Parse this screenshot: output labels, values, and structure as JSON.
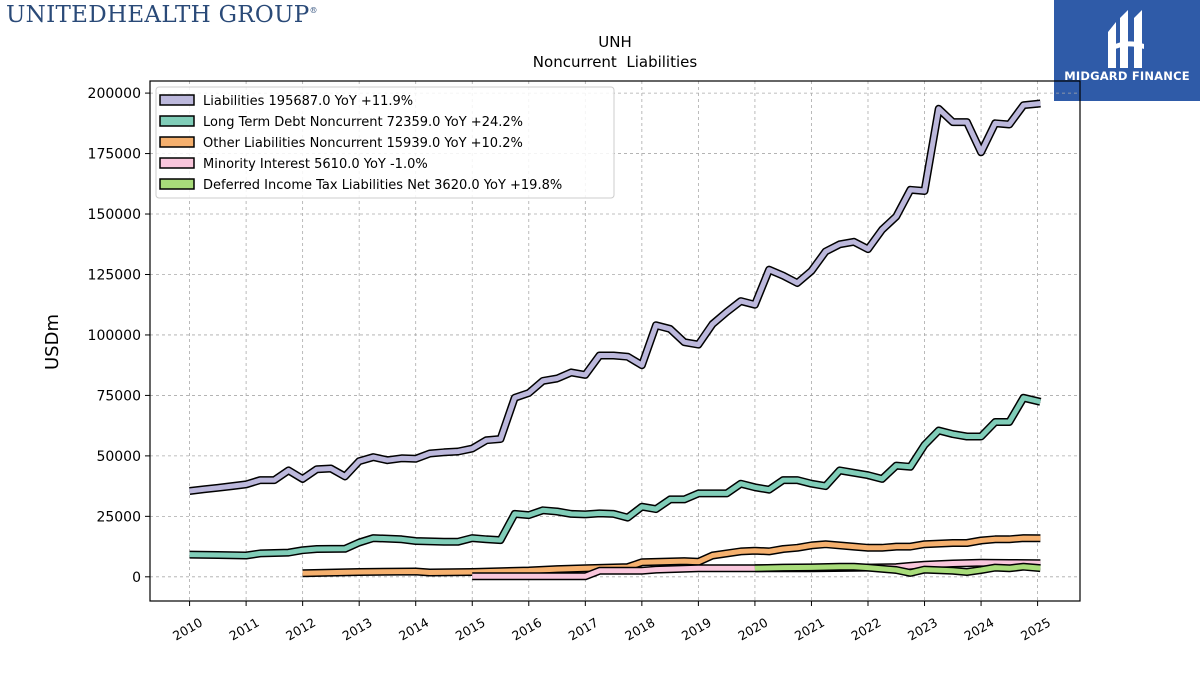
{
  "header": {
    "company_logo_text": "UNITEDHEALTH GROUP",
    "company_logo_mark": "®",
    "brand_name": "MIDGARD FINANCE"
  },
  "chart_data": {
    "type": "line",
    "title": "UNH",
    "subtitle": "Noncurrent  Liabilities",
    "xlabel": "",
    "ylabel": "USDm",
    "xlim": [
      2009.3,
      2025.75
    ],
    "ylim": [
      -10000,
      205000
    ],
    "x_ticks": [
      "2010",
      "2011",
      "2012",
      "2013",
      "2014",
      "2015",
      "2016",
      "2017",
      "2018",
      "2019",
      "2020",
      "2021",
      "2022",
      "2023",
      "2024",
      "2025"
    ],
    "y_ticks": [
      "0",
      "25000",
      "50000",
      "75000",
      "100000",
      "125000",
      "150000",
      "175000",
      "200000"
    ],
    "grid": true,
    "legend_position": "top-left",
    "series": [
      {
        "name": "Liabilities",
        "legend": "Liabilities  195687.0 YoY +11.9%",
        "color": "#bcb8dc",
        "points": [
          [
            2010.0,
            35500
          ],
          [
            2010.25,
            36200
          ],
          [
            2010.5,
            36800
          ],
          [
            2010.75,
            37500
          ],
          [
            2011.0,
            38200
          ],
          [
            2011.25,
            40000
          ],
          [
            2011.5,
            40000
          ],
          [
            2011.75,
            44000
          ],
          [
            2012.0,
            40500
          ],
          [
            2012.25,
            44500
          ],
          [
            2012.5,
            44800
          ],
          [
            2012.75,
            41500
          ],
          [
            2013.0,
            47800
          ],
          [
            2013.25,
            49500
          ],
          [
            2013.5,
            48200
          ],
          [
            2013.75,
            49000
          ],
          [
            2014.0,
            48800
          ],
          [
            2014.25,
            51000
          ],
          [
            2014.5,
            51500
          ],
          [
            2014.75,
            51800
          ],
          [
            2015.0,
            53000
          ],
          [
            2015.25,
            56500
          ],
          [
            2015.5,
            57000
          ],
          [
            2015.75,
            74000
          ],
          [
            2016.0,
            76000
          ],
          [
            2016.25,
            81000
          ],
          [
            2016.5,
            82000
          ],
          [
            2016.75,
            84500
          ],
          [
            2017.0,
            83500
          ],
          [
            2017.25,
            91500
          ],
          [
            2017.5,
            91500
          ],
          [
            2017.75,
            91000
          ],
          [
            2018.0,
            87500
          ],
          [
            2018.25,
            104000
          ],
          [
            2018.5,
            102500
          ],
          [
            2018.75,
            97000
          ],
          [
            2019.0,
            96000
          ],
          [
            2019.25,
            104500
          ],
          [
            2019.5,
            109500
          ],
          [
            2019.75,
            114000
          ],
          [
            2020.0,
            112500
          ],
          [
            2020.25,
            127000
          ],
          [
            2020.5,
            124500
          ],
          [
            2020.75,
            121500
          ],
          [
            2021.0,
            126500
          ],
          [
            2021.25,
            134500
          ],
          [
            2021.5,
            137500
          ],
          [
            2021.75,
            138500
          ],
          [
            2022.0,
            135500
          ],
          [
            2022.25,
            143500
          ],
          [
            2022.5,
            149000
          ],
          [
            2022.75,
            160000
          ],
          [
            2023.0,
            159500
          ],
          [
            2023.25,
            193500
          ],
          [
            2023.5,
            188000
          ],
          [
            2023.75,
            188000
          ],
          [
            2024.0,
            175500
          ],
          [
            2024.25,
            187500
          ],
          [
            2024.5,
            187000
          ],
          [
            2024.75,
            195000
          ],
          [
            2025.05,
            195687
          ]
        ]
      },
      {
        "name": "Long Term Debt Noncurrent",
        "legend": "Long Term Debt Noncurrent  72359.0 YoY +24.2%",
        "color": "#80cdb8",
        "points": [
          [
            2010.0,
            9200
          ],
          [
            2010.5,
            9000
          ],
          [
            2011.0,
            8800
          ],
          [
            2011.25,
            9700
          ],
          [
            2011.75,
            10000
          ],
          [
            2012.0,
            11000
          ],
          [
            2012.25,
            11500
          ],
          [
            2012.75,
            11600
          ],
          [
            2013.0,
            14200
          ],
          [
            2013.25,
            16000
          ],
          [
            2013.75,
            15500
          ],
          [
            2014.0,
            14800
          ],
          [
            2014.5,
            14500
          ],
          [
            2014.75,
            14500
          ],
          [
            2015.0,
            16000
          ],
          [
            2015.25,
            15500
          ],
          [
            2015.5,
            15200
          ],
          [
            2015.75,
            26000
          ],
          [
            2016.0,
            25500
          ],
          [
            2016.25,
            27500
          ],
          [
            2016.5,
            27000
          ],
          [
            2016.75,
            26000
          ],
          [
            2017.0,
            25800
          ],
          [
            2017.25,
            26200
          ],
          [
            2017.5,
            26000
          ],
          [
            2017.75,
            24500
          ],
          [
            2018.0,
            29000
          ],
          [
            2018.25,
            28000
          ],
          [
            2018.5,
            32000
          ],
          [
            2018.75,
            32000
          ],
          [
            2019.0,
            34500
          ],
          [
            2019.25,
            34500
          ],
          [
            2019.5,
            34500
          ],
          [
            2019.75,
            38500
          ],
          [
            2020.0,
            37000
          ],
          [
            2020.25,
            36000
          ],
          [
            2020.5,
            40000
          ],
          [
            2020.75,
            40000
          ],
          [
            2021.0,
            38500
          ],
          [
            2021.25,
            37500
          ],
          [
            2021.5,
            44000
          ],
          [
            2021.75,
            43000
          ],
          [
            2022.0,
            42000
          ],
          [
            2022.25,
            40500
          ],
          [
            2022.5,
            46000
          ],
          [
            2022.75,
            45500
          ],
          [
            2023.0,
            54500
          ],
          [
            2023.25,
            60500
          ],
          [
            2023.5,
            59000
          ],
          [
            2023.75,
            58000
          ],
          [
            2024.0,
            58000
          ],
          [
            2024.25,
            64000
          ],
          [
            2024.5,
            64000
          ],
          [
            2024.75,
            74000
          ],
          [
            2025.05,
            72359
          ]
        ]
      },
      {
        "name": "Other Liabilities Noncurrent",
        "legend": "Other Liabilities Noncurrent  15939.0 YoY +10.2%",
        "color": "#f5b06e",
        "points": [
          [
            2012.0,
            1500
          ],
          [
            2013.0,
            2000
          ],
          [
            2014.0,
            2200
          ],
          [
            2014.25,
            1800
          ],
          [
            2015.0,
            2000
          ],
          [
            2016.0,
            2600
          ],
          [
            2016.5,
            3200
          ],
          [
            2017.0,
            3500
          ],
          [
            2017.75,
            4000
          ],
          [
            2018.0,
            6000
          ],
          [
            2018.75,
            6500
          ],
          [
            2019.0,
            6200
          ],
          [
            2019.25,
            8800
          ],
          [
            2019.75,
            10500
          ],
          [
            2020.0,
            10800
          ],
          [
            2020.25,
            10500
          ],
          [
            2020.5,
            11500
          ],
          [
            2020.75,
            12000
          ],
          [
            2021.0,
            13000
          ],
          [
            2021.25,
            13500
          ],
          [
            2021.75,
            12500
          ],
          [
            2022.0,
            12000
          ],
          [
            2022.25,
            12000
          ],
          [
            2022.5,
            12500
          ],
          [
            2022.75,
            12500
          ],
          [
            2023.0,
            13500
          ],
          [
            2023.5,
            14000
          ],
          [
            2023.75,
            14000
          ],
          [
            2024.0,
            15000
          ],
          [
            2024.25,
            15500
          ],
          [
            2024.5,
            15500
          ],
          [
            2024.75,
            16000
          ],
          [
            2025.05,
            15939
          ]
        ]
      },
      {
        "name": "Minority Interest",
        "legend": "Minority Interest  5610.0 YoY -1.0%",
        "color": "#f9c6dc",
        "points": [
          [
            2015.0,
            200
          ],
          [
            2016.0,
            200
          ],
          [
            2017.0,
            200
          ],
          [
            2017.25,
            2500
          ],
          [
            2018.0,
            2500
          ],
          [
            2018.25,
            3000
          ],
          [
            2019.0,
            3500
          ],
          [
            2019.25,
            3500
          ],
          [
            2020.0,
            3500
          ],
          [
            2021.0,
            3500
          ],
          [
            2022.0,
            3800
          ],
          [
            2022.5,
            4000
          ],
          [
            2022.75,
            4500
          ],
          [
            2023.0,
            5000
          ],
          [
            2023.5,
            5500
          ],
          [
            2024.0,
            5800
          ],
          [
            2024.5,
            5700
          ],
          [
            2025.05,
            5610
          ]
        ]
      },
      {
        "name": "Deferred Income Tax Liabilities Net",
        "legend": "Deferred Income Tax Liabilities Net  3620.0 YoY +19.8%",
        "color": "#a8dc7a",
        "points": [
          [
            2020.0,
            3500
          ],
          [
            2020.5,
            3800
          ],
          [
            2021.0,
            3900
          ],
          [
            2021.5,
            4200
          ],
          [
            2021.75,
            4200
          ],
          [
            2022.0,
            3800
          ],
          [
            2022.5,
            2800
          ],
          [
            2022.75,
            1600
          ],
          [
            2023.0,
            3000
          ],
          [
            2023.5,
            2500
          ],
          [
            2023.75,
            2000
          ],
          [
            2024.0,
            2800
          ],
          [
            2024.25,
            3800
          ],
          [
            2024.5,
            3500
          ],
          [
            2024.75,
            4200
          ],
          [
            2025.05,
            3620
          ]
        ]
      }
    ]
  }
}
